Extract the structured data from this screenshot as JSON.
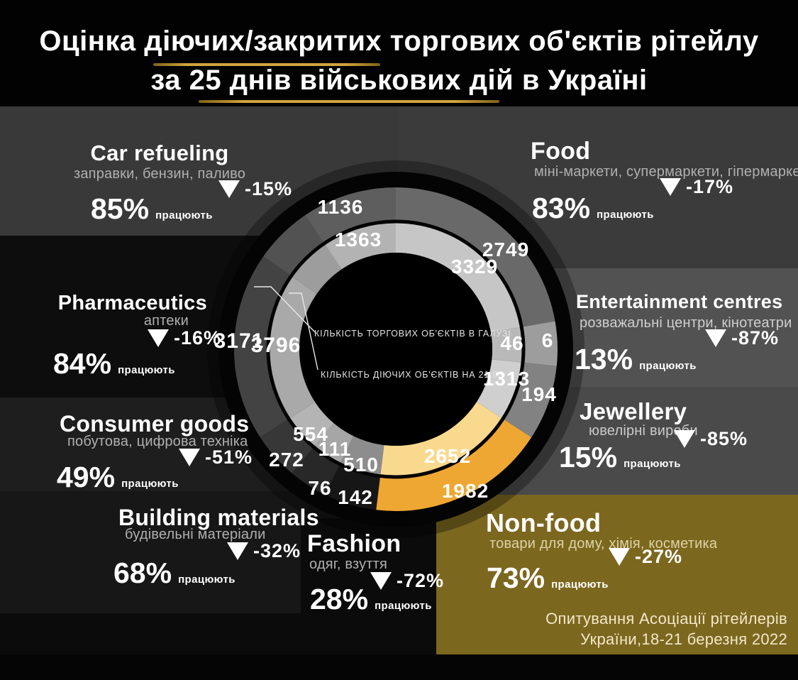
{
  "title": {
    "line1": "Оцінка діючих/закритих торгових об'єктів рітейлу",
    "line2": "за 25 днів військових дій в Україні"
  },
  "labels": {
    "working": "працюють"
  },
  "center_labels": {
    "industry_total": "КІЛЬКІСТЬ ТОРГОВИХ ОБ'ЄКТІВ В ГАЛУЗІ",
    "operating": "КІЛЬКІСТЬ ДІЮЧИХ ОБ'ЄКТІВ НА 21.03"
  },
  "source": {
    "line1": "Опитування Асоціації рітейлерів",
    "line2": "України,18-21 березня 2022"
  },
  "colors": {
    "accent_gold": "#d2a53c",
    "nonfood_panel": "#7c671f",
    "nonfood_ring_outer": "#eea733",
    "nonfood_ring_inner": "#f9d98e"
  },
  "chart_data": {
    "type": "donut",
    "rings": {
      "inner_ring_meaning": "КІЛЬКІСТЬ ТОРГОВИХ ОБ'ЄКТІВ В ГАЛУЗІ",
      "outer_ring_meaning": "КІЛЬКІСТЬ ДІЮЧИХ ОБ'ЄКТІВ НА 21.03"
    },
    "categories": [
      {
        "id": "food",
        "label": "Food",
        "sublabel": "міні-маркети, супермаркети, гіпермаркети",
        "change": "-17%",
        "working": "83%",
        "total": 3329,
        "operating": 2749,
        "arc": [
          0,
          80
        ],
        "outer_color": "#696969",
        "inner_color": "#c6c6c6"
      },
      {
        "id": "entertainment",
        "label": "Entertainment centres",
        "sublabel": "розважальні центри, кінотеатри",
        "change": "-87%",
        "working": "13%",
        "total": 46,
        "operating": 6,
        "arc": [
          80,
          96
        ],
        "outer_color": "#9d9d9d",
        "inner_color": "#b9b9b9"
      },
      {
        "id": "jewellery",
        "label": "Jewellery",
        "sublabel": "ювелірні вироби",
        "change": "-85%",
        "working": "15%",
        "total": 1313,
        "operating": 194,
        "arc": [
          96,
          123
        ],
        "outer_color": "#828282",
        "inner_color": "#cfcfcf"
      },
      {
        "id": "non_food",
        "label": "Non-food",
        "sublabel": "товари для дому, хімія, косметика",
        "change": "-27%",
        "working": "73%",
        "total": 2652,
        "operating": 1982,
        "arc": [
          123,
          187
        ],
        "outer_color": "#eea733",
        "inner_color": "#f9d98e"
      },
      {
        "id": "fashion",
        "label": "Fashion",
        "sublabel": "одяг, взуття",
        "change": "-72%",
        "working": "28%",
        "total": 510,
        "operating": 142,
        "arc": [
          187,
          206
        ],
        "outer_color": "#161616",
        "inner_color": "#8d8d8d"
      },
      {
        "id": "building_materials",
        "label": "Building materials",
        "sublabel": "будівельні матеріали",
        "change": "-32%",
        "working": "68%",
        "total": 111,
        "operating": 76,
        "arc": [
          206,
          220
        ],
        "outer_color": "#282828",
        "inner_color": "#a6a6a6"
      },
      {
        "id": "consumer_goods",
        "label": "Consumer goods",
        "sublabel": "побутова, цифрова техніка",
        "change": "-51%",
        "working": "49%",
        "total": 554,
        "operating": 272,
        "arc": [
          220,
          237
        ],
        "outer_color": "#373737",
        "inner_color": "#b4b4b4"
      },
      {
        "id": "pharmaceutics",
        "label": "Pharmaceutics",
        "sublabel": "аптеки",
        "change": "-16%",
        "working": "84%",
        "total": 3796,
        "operating": 3171,
        "arc": [
          237,
          305
        ],
        "outer_color": "#434343",
        "inner_color": "#a9a9a9"
      },
      {
        "id": "car_refueling",
        "label": "Car refueling",
        "sublabel": "заправки, бензин, паливо",
        "change": "-15%",
        "working": "85%",
        "total": 1363,
        "operating": 1136,
        "arc": [
          305,
          360
        ],
        "outer_color": "#5e5e5e",
        "inner_color": "#b3b3b3"
      }
    ]
  }
}
